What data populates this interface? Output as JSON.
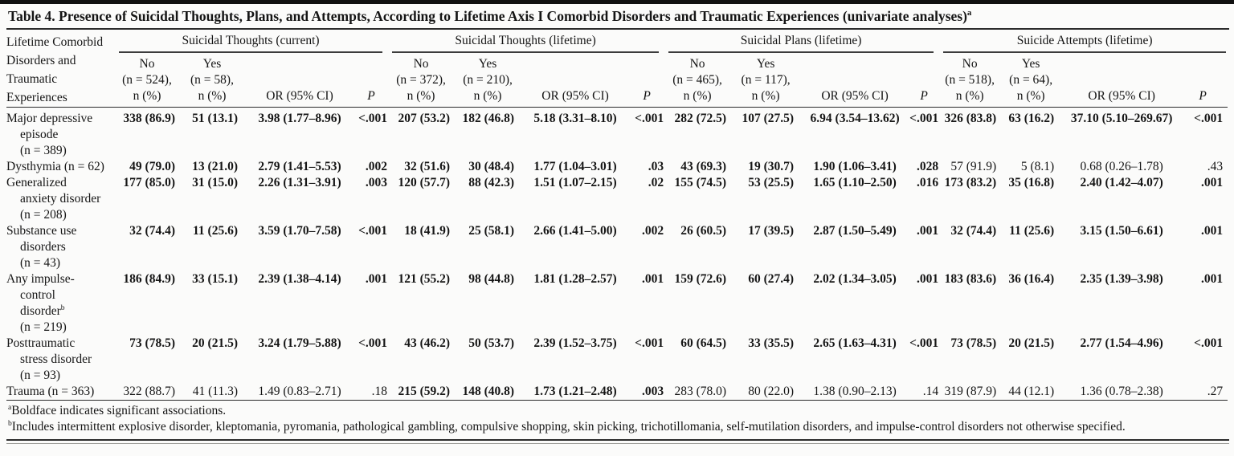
{
  "title": "Table 4. Presence of Suicidal Thoughts, Plans, and Attempts, According to Lifetime Axis I Comorbid Disorders and Traumatic Experiences (univariate analyses)^a",
  "table": {
    "stub_header": "Lifetime Comorbid\nDisorders and\nTraumatic\nExperiences",
    "groups": [
      {
        "label": "Suicidal Thoughts (current)",
        "no": "No\n(n = 524),\nn (%)",
        "yes": "Yes\n(n = 58),\nn (%)",
        "or": "OR (95% CI)",
        "p": "P"
      },
      {
        "label": "Suicidal Thoughts (lifetime)",
        "no": "No\n(n = 372),\nn (%)",
        "yes": "Yes\n(n = 210),\nn (%)",
        "or": "OR (95% CI)",
        "p": "P"
      },
      {
        "label": "Suicidal Plans (lifetime)",
        "no": "No\n(n = 465),\nn (%)",
        "yes": "Yes\n(n = 117),\nn (%)",
        "or": "OR (95% CI)",
        "p": "P"
      },
      {
        "label": "Suicide Attempts (lifetime)",
        "no": "No\n(n = 518),\nn (%)",
        "yes": "Yes\n(n = 64),\nn (%)",
        "or": "OR (95% CI)",
        "p": "P"
      }
    ],
    "rows": [
      {
        "label": "Major depressive\nepisode\n(n = 389)",
        "cells": [
          {
            "no": "338 (86.9)",
            "yes": "51 (13.1)",
            "or": "3.98 (1.77–8.96)",
            "p": "<.001",
            "sig": true
          },
          {
            "no": "207 (53.2)",
            "yes": "182 (46.8)",
            "or": "5.18 (3.31–8.10)",
            "p": "<.001",
            "sig": true
          },
          {
            "no": "282 (72.5)",
            "yes": "107 (27.5)",
            "or": "6.94 (3.54–13.62)",
            "p": "<.001",
            "sig": true
          },
          {
            "no": "326 (83.8)",
            "yes": "63 (16.2)",
            "or": "37.10 (5.10–269.67)",
            "p": "<.001",
            "sig": true
          }
        ]
      },
      {
        "label": "Dysthymia (n = 62)",
        "cells": [
          {
            "no": "49 (79.0)",
            "yes": "13 (21.0)",
            "or": "2.79 (1.41–5.53)",
            "p": ".002",
            "sig": true
          },
          {
            "no": "32 (51.6)",
            "yes": "30 (48.4)",
            "or": "1.77 (1.04–3.01)",
            "p": ".03",
            "sig": true
          },
          {
            "no": "43 (69.3)",
            "yes": "19 (30.7)",
            "or": "1.90 (1.06–3.41)",
            "p": ".028",
            "sig": true
          },
          {
            "no": "57 (91.9)",
            "yes": "5 (8.1)",
            "or": "0.68 (0.26–1.78)",
            "p": ".43",
            "sig": false
          }
        ]
      },
      {
        "label": "Generalized\nanxiety disorder\n(n = 208)",
        "cells": [
          {
            "no": "177 (85.0)",
            "yes": "31 (15.0)",
            "or": "2.26 (1.31–3.91)",
            "p": ".003",
            "sig": true
          },
          {
            "no": "120 (57.7)",
            "yes": "88 (42.3)",
            "or": "1.51 (1.07–2.15)",
            "p": ".02",
            "sig": true
          },
          {
            "no": "155 (74.5)",
            "yes": "53 (25.5)",
            "or": "1.65 (1.10–2.50)",
            "p": ".016",
            "sig": true
          },
          {
            "no": "173 (83.2)",
            "yes": "35 (16.8)",
            "or": "2.40 (1.42–4.07)",
            "p": ".001",
            "sig": true
          }
        ]
      },
      {
        "label": "Substance use\ndisorders\n(n = 43)",
        "cells": [
          {
            "no": "32 (74.4)",
            "yes": "11 (25.6)",
            "or": "3.59 (1.70–7.58)",
            "p": "<.001",
            "sig": true
          },
          {
            "no": "18 (41.9)",
            "yes": "25 (58.1)",
            "or": "2.66 (1.41–5.00)",
            "p": ".002",
            "sig": true
          },
          {
            "no": "26 (60.5)",
            "yes": "17 (39.5)",
            "or": "2.87 (1.50–5.49)",
            "p": ".001",
            "sig": true
          },
          {
            "no": "32 (74.4)",
            "yes": "11 (25.6)",
            "or": "3.15 (1.50–6.61)",
            "p": ".001",
            "sig": true
          }
        ]
      },
      {
        "label": "Any impulse-\ncontrol\ndisorder^b\n(n = 219)",
        "cells": [
          {
            "no": "186 (84.9)",
            "yes": "33 (15.1)",
            "or": "2.39 (1.38–4.14)",
            "p": ".001",
            "sig": true
          },
          {
            "no": "121 (55.2)",
            "yes": "98 (44.8)",
            "or": "1.81 (1.28–2.57)",
            "p": ".001",
            "sig": true
          },
          {
            "no": "159 (72.6)",
            "yes": "60 (27.4)",
            "or": "2.02 (1.34–3.05)",
            "p": ".001",
            "sig": true
          },
          {
            "no": "183 (83.6)",
            "yes": "36 (16.4)",
            "or": "2.35 (1.39–3.98)",
            "p": ".001",
            "sig": true
          }
        ]
      },
      {
        "label": "Posttraumatic\nstress disorder\n(n = 93)",
        "cells": [
          {
            "no": "73 (78.5)",
            "yes": "20 (21.5)",
            "or": "3.24 (1.79–5.88)",
            "p": "<.001",
            "sig": true
          },
          {
            "no": "43 (46.2)",
            "yes": "50 (53.7)",
            "or": "2.39 (1.52–3.75)",
            "p": "<.001",
            "sig": true
          },
          {
            "no": "60 (64.5)",
            "yes": "33 (35.5)",
            "or": "2.65 (1.63–4.31)",
            "p": "<.001",
            "sig": true
          },
          {
            "no": "73 (78.5)",
            "yes": "20 (21.5)",
            "or": "2.77 (1.54–4.96)",
            "p": "<.001",
            "sig": true
          }
        ]
      },
      {
        "label": "Trauma (n = 363)",
        "cells": [
          {
            "no": "322 (88.7)",
            "yes": "41 (11.3)",
            "or": "1.49 (0.83–2.71)",
            "p": ".18",
            "sig": false
          },
          {
            "no": "215 (59.2)",
            "yes": "148 (40.8)",
            "or": "1.73 (1.21–2.48)",
            "p": ".003",
            "sig": true
          },
          {
            "no": "283 (78.0)",
            "yes": "80 (22.0)",
            "or": "1.38 (0.90–2.13)",
            "p": ".14",
            "sig": false
          },
          {
            "no": "319 (87.9)",
            "yes": "44 (12.1)",
            "or": "1.36 (0.78–2.38)",
            "p": ".27",
            "sig": false
          }
        ]
      }
    ]
  },
  "footnotes": [
    {
      "marker": "a",
      "text": "Boldface indicates significant associations."
    },
    {
      "marker": "b",
      "text": "Includes intermittent explosive disorder, kleptomania, pyromania, pathological gambling, compulsive shopping, skin picking, trichotillomania, self-mutilation disorders, and impulse-control disorders not otherwise specified."
    }
  ]
}
